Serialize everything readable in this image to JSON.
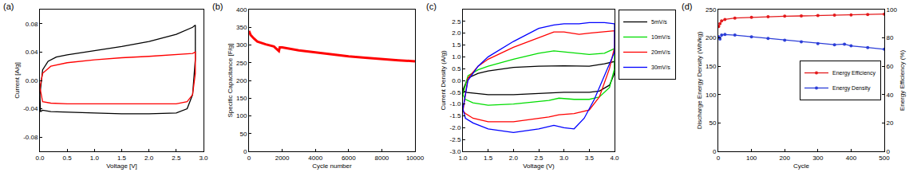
{
  "chart_data": [
    {
      "type": "line",
      "title": "(a)",
      "x_label": "Voltage [V]",
      "y_label": "Current [A/g]",
      "xlim": [
        0,
        3
      ],
      "xticks": [
        {
          "value": 0,
          "label": "0.0"
        },
        0.5,
        {
          "value": 1,
          "label": "1.0"
        },
        1.5,
        {
          "value": 2,
          "label": "2.0"
        },
        2.5,
        {
          "value": 3,
          "label": "3.0"
        }
      ],
      "ylim": [
        -0.1,
        0.1
      ],
      "yticks": [
        -0.08,
        -0.04,
        {
          "value": 0,
          "label": "0.00"
        },
        0.04,
        0.08
      ],
      "series": [
        {
          "color": "#000000",
          "x": [
            0,
            0.05,
            0.15,
            0.3,
            0.5,
            1.0,
            1.5,
            2.0,
            2.5,
            2.8,
            2.85,
            2.85,
            2.8,
            2.7,
            2.5,
            2.0,
            1.5,
            1.0,
            0.5,
            0.2,
            0.05,
            0.01,
            0
          ],
          "values": [
            -0.02,
            0.015,
            0.027,
            0.033,
            0.036,
            0.042,
            0.048,
            0.055,
            0.065,
            0.075,
            0.078,
            0.03,
            -0.02,
            -0.04,
            -0.046,
            -0.047,
            -0.047,
            -0.046,
            -0.045,
            -0.044,
            -0.042,
            -0.044,
            -0.02
          ]
        },
        {
          "color": "#ff0000",
          "x": [
            0,
            0.05,
            0.2,
            0.5,
            1.0,
            1.5,
            2.0,
            2.5,
            2.8,
            2.85,
            2.85,
            2.8,
            2.7,
            2.5,
            2.0,
            1.0,
            0.5,
            0.2,
            0.05,
            0
          ],
          "values": [
            -0.01,
            0.01,
            0.02,
            0.025,
            0.029,
            0.032,
            0.034,
            0.036,
            0.038,
            0.04,
            0.01,
            -0.02,
            -0.03,
            -0.033,
            -0.033,
            -0.033,
            -0.033,
            -0.032,
            -0.03,
            -0.01
          ]
        }
      ]
    },
    {
      "type": "line",
      "title": "(b)",
      "x_label": "Cycle number",
      "y_label": "Specific Capacitance [F/g]",
      "xlim": [
        0,
        10000
      ],
      "xticks": [
        0,
        2000,
        4000,
        6000,
        8000,
        10000
      ],
      "ylim": [
        0,
        400
      ],
      "yticks": [
        0,
        50,
        100,
        150,
        200,
        250,
        300,
        350,
        400
      ],
      "series": [
        {
          "color": "#ff0000",
          "x": [
            0,
            100,
            300,
            500,
            1000,
            1500,
            1800,
            1850,
            2000,
            3000,
            4000,
            5000,
            6000,
            7000,
            8000,
            9000,
            10000
          ],
          "values": [
            340,
            328,
            318,
            310,
            302,
            296,
            283,
            293,
            293,
            285,
            279,
            273,
            268,
            264,
            260,
            257,
            254
          ]
        }
      ]
    },
    {
      "type": "line",
      "title": "(c)",
      "x_label": "Voltage (V)",
      "y_label": "Current Density (A/g)",
      "legend": "outside right",
      "xlim": [
        1,
        4
      ],
      "xticks": [
        {
          "value": 1,
          "label": "1.0"
        },
        1.5,
        {
          "value": 2,
          "label": "2.0"
        },
        2.5,
        {
          "value": 3,
          "label": "3.0"
        },
        3.5,
        {
          "value": 4,
          "label": "4.0"
        }
      ],
      "ylim": [
        -3,
        3
      ],
      "yticks": [
        {
          "value": -3,
          "label": "-3.0"
        },
        -2.5,
        {
          "value": -2,
          "label": "-2.0"
        },
        -1.5,
        {
          "value": -1,
          "label": "-1.0"
        },
        -0.5,
        {
          "value": 0,
          "label": "0.0"
        },
        0.5,
        {
          "value": 1,
          "label": "1.0"
        },
        1.5,
        {
          "value": 2,
          "label": "2.0"
        },
        2.5
      ],
      "series": [
        {
          "name": "5mV/s",
          "color": "#000000",
          "x": [
            1.0,
            1.1,
            1.3,
            1.5,
            2.0,
            2.5,
            3.0,
            3.5,
            3.8,
            4.0,
            4.0,
            3.9,
            3.7,
            3.5,
            3.0,
            2.5,
            2.0,
            1.5,
            1.2,
            1.05,
            1.0
          ],
          "values": [
            -0.4,
            0.1,
            0.3,
            0.4,
            0.55,
            0.6,
            0.62,
            0.6,
            0.7,
            0.8,
            0.3,
            -0.2,
            -0.45,
            -0.5,
            -0.5,
            -0.55,
            -0.6,
            -0.6,
            -0.55,
            -0.5,
            -0.4
          ]
        },
        {
          "name": "10mV/s",
          "color": "#00dd00",
          "x": [
            1.0,
            1.1,
            1.3,
            1.5,
            2.0,
            2.5,
            2.8,
            3.0,
            3.5,
            3.8,
            4.0,
            4.0,
            3.9,
            3.7,
            3.5,
            3.2,
            2.9,
            2.7,
            2.5,
            2.0,
            1.5,
            1.2,
            1.05,
            1.0
          ],
          "values": [
            -0.6,
            0.2,
            0.45,
            0.6,
            0.9,
            1.15,
            1.25,
            1.2,
            1.1,
            1.15,
            1.35,
            0.5,
            -0.3,
            -0.7,
            -0.8,
            -0.8,
            -0.75,
            -0.85,
            -0.9,
            -1.0,
            -1.05,
            -0.95,
            -0.8,
            -0.6
          ]
        },
        {
          "name": "20mV/s",
          "color": "#ff0000",
          "x": [
            1.0,
            1.1,
            1.3,
            1.5,
            2.0,
            2.5,
            2.8,
            3.0,
            3.3,
            3.5,
            3.8,
            4.0,
            4.0,
            3.9,
            3.7,
            3.5,
            3.2,
            2.9,
            2.7,
            2.5,
            2.0,
            1.5,
            1.2,
            1.05,
            1.0
          ],
          "values": [
            -1.3,
            0.1,
            0.6,
            0.9,
            1.4,
            1.8,
            2.05,
            2.05,
            1.95,
            2.0,
            2.05,
            2.1,
            1.4,
            0.5,
            -0.7,
            -1.25,
            -1.4,
            -1.45,
            -1.55,
            -1.6,
            -1.75,
            -1.75,
            -1.6,
            -1.4,
            -1.3
          ]
        },
        {
          "name": "30mV/s",
          "color": "#0000ff",
          "x": [
            1.0,
            1.1,
            1.3,
            1.5,
            2.0,
            2.5,
            2.8,
            3.0,
            3.3,
            3.5,
            3.8,
            4.0,
            4.0,
            3.8,
            3.6,
            3.4,
            3.2,
            3.0,
            2.8,
            2.5,
            2.0,
            1.5,
            1.2,
            1.05,
            1.0
          ],
          "values": [
            -1.2,
            0.0,
            0.6,
            1.0,
            1.65,
            2.2,
            2.35,
            2.4,
            2.4,
            2.45,
            2.45,
            2.4,
            1.2,
            0.2,
            -0.8,
            -1.6,
            -2.05,
            -2.0,
            -1.9,
            -2.05,
            -2.2,
            -2.05,
            -1.8,
            -1.6,
            -1.2
          ]
        }
      ]
    },
    {
      "type": "line",
      "title": "(d)",
      "x_label": "Cycle",
      "y_label": "Discharge Energy Density (Wh/kg)",
      "y2_label": "Energy Efficiency (%)",
      "legend": "center right",
      "xlim": [
        0,
        500
      ],
      "xticks": [
        0,
        100,
        200,
        300,
        400,
        500
      ],
      "ylim": [
        0,
        250
      ],
      "yticks": [
        0,
        50,
        100,
        150,
        200,
        250
      ],
      "y2lim": [
        0,
        100
      ],
      "y2ticks": [
        0,
        20,
        40,
        60,
        80,
        100
      ],
      "series": [
        {
          "name": "Energy Efficiency",
          "color": "#e41a1c",
          "axis": "y2",
          "marker": "circle",
          "x": [
            1,
            5,
            10,
            20,
            50,
            100,
            150,
            200,
            250,
            300,
            350,
            400,
            450,
            500
          ],
          "values": [
            88,
            90,
            92,
            93,
            94,
            94.5,
            95,
            95.3,
            95.5,
            95.8,
            96,
            96.2,
            96.5,
            96.8
          ]
        },
        {
          "name": "Energy Density",
          "color": "#2c3ed8",
          "marker": "circle",
          "x": [
            1,
            5,
            10,
            20,
            50,
            100,
            150,
            200,
            250,
            300,
            350,
            380,
            400,
            450,
            500
          ],
          "values": [
            202,
            198,
            205,
            206,
            205,
            202,
            199,
            196,
            193,
            190,
            188,
            189,
            186,
            183,
            180
          ]
        }
      ]
    }
  ]
}
